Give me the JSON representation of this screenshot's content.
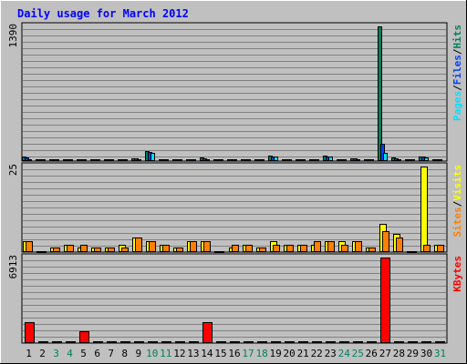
{
  "chart_data": {
    "type": "bar",
    "title": "Daily usage for March 2012",
    "x": [
      "1",
      "2",
      "3",
      "4",
      "5",
      "6",
      "7",
      "8",
      "9",
      "10",
      "11",
      "12",
      "13",
      "14",
      "15",
      "16",
      "17",
      "18",
      "19",
      "20",
      "21",
      "22",
      "23",
      "24",
      "25",
      "26",
      "27",
      "28",
      "29",
      "30",
      "31"
    ],
    "weekend_days": [
      "3",
      "4",
      "10",
      "11",
      "17",
      "18",
      "24",
      "25",
      "31"
    ],
    "colors": {
      "background": "#c0c0c0",
      "plot": "#c0c0c0",
      "grid": "#808080",
      "title": "#0000ff",
      "day_label": "#000000",
      "weekend_label": "#00805c",
      "hits": "#00805c",
      "files": "#0040ff",
      "pages": "#00e0ff",
      "visits": "#ffff00",
      "sites": "#ff8000",
      "kbytes": "#ff0000"
    },
    "panels": [
      {
        "id": "hits-files-pages",
        "max_label": "1390",
        "ylim": [
          0,
          1390
        ],
        "legend": [
          {
            "label": "Pages",
            "color": "#00e0ff"
          },
          {
            "label": "/",
            "color": "#000000"
          },
          {
            "label": "Files",
            "color": "#0040ff"
          },
          {
            "label": "/",
            "color": "#000000"
          },
          {
            "label": "Hits",
            "color": "#00805c"
          }
        ],
        "series": [
          {
            "name": "Hits",
            "color": "#00805c",
            "values": [
              41,
              8,
              6,
              6,
              6,
              6,
              6,
              6,
              22,
              90,
              6,
              6,
              6,
              25,
              6,
              6,
              6,
              6,
              45,
              6,
              6,
              6,
              45,
              6,
              20,
              6,
              1390,
              25,
              6,
              40,
              6
            ]
          },
          {
            "name": "Files",
            "color": "#0040ff",
            "values": [
              28,
              6,
              5,
              5,
              5,
              5,
              5,
              5,
              15,
              85,
              5,
              5,
              5,
              20,
              5,
              5,
              5,
              5,
              40,
              5,
              5,
              5,
              40,
              5,
              15,
              5,
              170,
              18,
              5,
              35,
              5
            ]
          },
          {
            "name": "Pages",
            "color": "#00e0ff",
            "values": [
              10,
              3,
              2,
              2,
              2,
              2,
              2,
              2,
              6,
              80,
              2,
              2,
              2,
              8,
              2,
              2,
              2,
              2,
              35,
              2,
              2,
              2,
              35,
              2,
              10,
              2,
              75,
              8,
              2,
              30,
              2
            ]
          }
        ]
      },
      {
        "id": "visits-sites",
        "max_label": "25",
        "ylim": [
          0,
          25
        ],
        "legend": [
          {
            "label": "Sites",
            "color": "#ff8000"
          },
          {
            "label": "/",
            "color": "#000000"
          },
          {
            "label": "Visits",
            "color": "#ffff00"
          }
        ],
        "series": [
          {
            "name": "Visits",
            "color": "#ffff00",
            "values": [
              3,
              0,
              1,
              2,
              1,
              1,
              1,
              2,
              4,
              3,
              2,
              1,
              3,
              3,
              0,
              1,
              2,
              1,
              3,
              2,
              2,
              2,
              3,
              3,
              3,
              1,
              8,
              5,
              0,
              25,
              2
            ]
          },
          {
            "name": "Sites",
            "color": "#ff8000",
            "values": [
              3,
              0,
              1,
              2,
              2,
              1,
              1,
              1,
              4,
              3,
              2,
              1,
              3,
              3,
              0,
              2,
              2,
              1,
              2,
              2,
              2,
              3,
              3,
              2,
              3,
              1,
              6,
              4,
              0,
              2,
              2
            ]
          }
        ]
      },
      {
        "id": "kbytes",
        "max_label": "6913",
        "ylim": [
          0,
          6913
        ],
        "legend": [
          {
            "label": "KBytes",
            "color": "#ff0000"
          }
        ],
        "series": [
          {
            "name": "KBytes",
            "color": "#ff0000",
            "values": [
              1600,
              40,
              40,
              40,
              900,
              40,
              40,
              40,
              60,
              60,
              40,
              40,
              40,
              1600,
              40,
              40,
              40,
              40,
              40,
              40,
              40,
              60,
              40,
              40,
              40,
              40,
              6913,
              100,
              40,
              40,
              40
            ]
          }
        ]
      }
    ]
  }
}
